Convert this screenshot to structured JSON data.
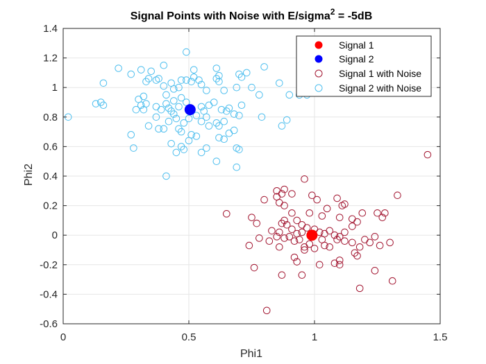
{
  "chart_data": {
    "type": "scatter",
    "title": "Signal Points with Noise with E/sigma",
    "title_superscript": "2",
    "title_suffix": " = -5dB",
    "xlabel": "Phi1",
    "ylabel": "Phi2",
    "xlim": [
      0,
      1.5
    ],
    "ylim": [
      -0.6,
      1.4
    ],
    "xticks": [
      0,
      0.5,
      1,
      1.5
    ],
    "xtick_labels": [
      "0",
      "0.5",
      "1",
      "1.5"
    ],
    "yticks": [
      -0.6,
      -0.4,
      -0.2,
      0,
      0.2,
      0.4,
      0.6,
      0.8,
      1,
      1.2,
      1.4
    ],
    "ytick_labels": [
      "-0.6",
      "-0.4",
      "-0.2",
      "0",
      "0.2",
      "0.4",
      "0.6",
      "0.8",
      "1",
      "1.2",
      "1.4"
    ],
    "grid": true,
    "legend_position": "top-right",
    "colors": {
      "signal1": "#ff0000",
      "signal2": "#0000ff",
      "signal1_noise": "#a2142f",
      "signal2_noise": "#4dbeee",
      "grid": "#e6e6e6",
      "axis": "#262626"
    },
    "series": [
      {
        "name": "Signal 1",
        "marker": "filled-circle",
        "color": "#ff0000",
        "points": [
          [
            0.99,
            0.0
          ]
        ]
      },
      {
        "name": "Signal 2",
        "marker": "filled-circle",
        "color": "#0000ff",
        "points": [
          [
            0.505,
            0.85
          ]
        ]
      },
      {
        "name": "Signal 1 with Noise",
        "marker": "open-circle",
        "color": "#a2142f",
        "points": [
          [
            1.45,
            0.545
          ],
          [
            0.65,
            0.145
          ],
          [
            0.8,
            0.24
          ],
          [
            0.85,
            0.3
          ],
          [
            0.87,
            0.28
          ],
          [
            0.88,
            0.31
          ],
          [
            0.91,
            0.28
          ],
          [
            0.96,
            0.38
          ],
          [
            0.99,
            0.27
          ],
          [
            1.01,
            0.24
          ],
          [
            1.09,
            0.25
          ],
          [
            1.11,
            0.2
          ],
          [
            1.12,
            0.21
          ],
          [
            1.33,
            0.27
          ],
          [
            0.85,
            0.26
          ],
          [
            0.86,
            0.22
          ],
          [
            0.88,
            0.2
          ],
          [
            0.91,
            0.15
          ],
          [
            0.93,
            0.1
          ],
          [
            0.95,
            0.07
          ],
          [
            0.98,
            0.15
          ],
          [
            1.03,
            0.13
          ],
          [
            1.05,
            0.18
          ],
          [
            1.1,
            0.12
          ],
          [
            1.15,
            0.11
          ],
          [
            1.19,
            0.15
          ],
          [
            1.25,
            0.15
          ],
          [
            1.28,
            0.15
          ],
          [
            1.27,
            0.12
          ],
          [
            0.75,
            0.12
          ],
          [
            0.77,
            0.08
          ],
          [
            0.83,
            0.03
          ],
          [
            0.86,
            0.02
          ],
          [
            0.87,
            0.08
          ],
          [
            0.88,
            0.1
          ],
          [
            0.89,
            0.07
          ],
          [
            0.91,
            0.04
          ],
          [
            0.93,
            0.01
          ],
          [
            0.95,
            0.02
          ],
          [
            0.97,
            0.05
          ],
          [
            1.0,
            0.04
          ],
          [
            1.02,
            0.02
          ],
          [
            1.04,
            0.01
          ],
          [
            1.06,
            0.03
          ],
          [
            1.08,
            0.0
          ],
          [
            1.1,
            -0.01
          ],
          [
            1.12,
            0.02
          ],
          [
            1.15,
            0.06
          ],
          [
            1.17,
            0.09
          ],
          [
            0.74,
            -0.07
          ],
          [
            0.78,
            -0.02
          ],
          [
            0.82,
            -0.04
          ],
          [
            0.85,
            -0.01
          ],
          [
            0.86,
            -0.08
          ],
          [
            0.88,
            -0.02
          ],
          [
            0.9,
            -0.01
          ],
          [
            0.92,
            -0.04
          ],
          [
            0.94,
            -0.03
          ],
          [
            0.96,
            -0.08
          ],
          [
            0.98,
            -0.06
          ],
          [
            1.0,
            -0.09
          ],
          [
            1.03,
            -0.03
          ],
          [
            1.04,
            -0.07
          ],
          [
            1.06,
            -0.08
          ],
          [
            1.09,
            -0.03
          ],
          [
            1.12,
            -0.04
          ],
          [
            1.15,
            -0.05
          ],
          [
            1.18,
            -0.08
          ],
          [
            1.2,
            -0.03
          ],
          [
            1.22,
            -0.05
          ],
          [
            1.24,
            -0.01
          ],
          [
            1.26,
            -0.07
          ],
          [
            1.3,
            -0.05
          ],
          [
            0.92,
            -0.15
          ],
          [
            0.93,
            -0.18
          ],
          [
            0.96,
            -0.1
          ],
          [
            1.02,
            -0.2
          ],
          [
            1.08,
            -0.19
          ],
          [
            1.1,
            -0.17
          ],
          [
            1.1,
            -0.2
          ],
          [
            1.16,
            -0.12
          ],
          [
            1.17,
            -0.14
          ],
          [
            1.24,
            -0.24
          ],
          [
            0.76,
            -0.22
          ],
          [
            0.87,
            -0.27
          ],
          [
            0.95,
            -0.27
          ],
          [
            1.18,
            -0.36
          ],
          [
            1.31,
            -0.31
          ],
          [
            0.81,
            -0.51
          ]
        ]
      },
      {
        "name": "Signal 2 with Noise",
        "marker": "open-circle",
        "color": "#4dbeee",
        "points": [
          [
            0.02,
            0.8
          ],
          [
            0.13,
            0.89
          ],
          [
            0.15,
            0.9
          ],
          [
            0.16,
            0.88
          ],
          [
            0.16,
            1.03
          ],
          [
            0.22,
            1.13
          ],
          [
            0.27,
            1.09
          ],
          [
            0.31,
            1.12
          ],
          [
            0.35,
            1.11
          ],
          [
            0.4,
            1.15
          ],
          [
            0.49,
            1.24
          ],
          [
            0.52,
            1.12
          ],
          [
            0.61,
            1.13
          ],
          [
            0.62,
            1.08
          ],
          [
            0.73,
            1.1
          ],
          [
            0.8,
            1.14
          ],
          [
            0.3,
            0.92
          ],
          [
            0.31,
            0.88
          ],
          [
            0.32,
            0.94
          ],
          [
            0.33,
            1.04
          ],
          [
            0.34,
            1.06
          ],
          [
            0.37,
            1.05
          ],
          [
            0.38,
            1.06
          ],
          [
            0.4,
            1.01
          ],
          [
            0.41,
            0.95
          ],
          [
            0.43,
            1.03
          ],
          [
            0.44,
            0.99
          ],
          [
            0.46,
            1.0
          ],
          [
            0.47,
            1.05
          ],
          [
            0.49,
            1.05
          ],
          [
            0.51,
            1.04
          ],
          [
            0.52,
            1.07
          ],
          [
            0.54,
            1.05
          ],
          [
            0.55,
            1.02
          ],
          [
            0.57,
            0.98
          ],
          [
            0.61,
            1.06
          ],
          [
            0.62,
            1.04
          ],
          [
            0.64,
            0.98
          ],
          [
            0.69,
            1.0
          ],
          [
            0.7,
            1.09
          ],
          [
            0.71,
            1.07
          ],
          [
            0.75,
            1.0
          ],
          [
            0.86,
            1.03
          ],
          [
            0.9,
            0.95
          ],
          [
            0.94,
            0.95
          ],
          [
            0.97,
            0.95
          ],
          [
            0.78,
            0.95
          ],
          [
            0.29,
            0.85
          ],
          [
            0.32,
            0.85
          ],
          [
            0.33,
            0.89
          ],
          [
            0.37,
            0.87
          ],
          [
            0.39,
            0.85
          ],
          [
            0.41,
            0.89
          ],
          [
            0.42,
            0.86
          ],
          [
            0.43,
            0.84
          ],
          [
            0.44,
            0.91
          ],
          [
            0.46,
            0.87
          ],
          [
            0.47,
            0.93
          ],
          [
            0.49,
            0.9
          ],
          [
            0.55,
            0.87
          ],
          [
            0.56,
            0.84
          ],
          [
            0.58,
            0.88
          ],
          [
            0.6,
            0.9
          ],
          [
            0.63,
            0.85
          ],
          [
            0.65,
            0.84
          ],
          [
            0.66,
            0.86
          ],
          [
            0.68,
            0.82
          ],
          [
            0.7,
            0.81
          ],
          [
            0.71,
            0.88
          ],
          [
            0.34,
            0.74
          ],
          [
            0.37,
            0.8
          ],
          [
            0.38,
            0.72
          ],
          [
            0.4,
            0.72
          ],
          [
            0.42,
            0.77
          ],
          [
            0.44,
            0.82
          ],
          [
            0.45,
            0.79
          ],
          [
            0.46,
            0.72
          ],
          [
            0.47,
            0.7
          ],
          [
            0.48,
            0.76
          ],
          [
            0.5,
            0.79
          ],
          [
            0.53,
            0.81
          ],
          [
            0.55,
            0.77
          ],
          [
            0.57,
            0.8
          ],
          [
            0.58,
            0.74
          ],
          [
            0.61,
            0.76
          ],
          [
            0.62,
            0.74
          ],
          [
            0.64,
            0.77
          ],
          [
            0.66,
            0.69
          ],
          [
            0.68,
            0.71
          ],
          [
            0.79,
            0.8
          ],
          [
            0.87,
            0.74
          ],
          [
            0.89,
            0.78
          ],
          [
            0.27,
            0.68
          ],
          [
            0.28,
            0.59
          ],
          [
            0.43,
            0.62
          ],
          [
            0.45,
            0.56
          ],
          [
            0.47,
            0.6
          ],
          [
            0.48,
            0.58
          ],
          [
            0.5,
            0.64
          ],
          [
            0.51,
            0.68
          ],
          [
            0.53,
            0.67
          ],
          [
            0.55,
            0.56
          ],
          [
            0.57,
            0.59
          ],
          [
            0.62,
            0.66
          ],
          [
            0.64,
            0.65
          ],
          [
            0.69,
            0.59
          ],
          [
            0.7,
            0.58
          ],
          [
            0.61,
            0.5
          ],
          [
            0.69,
            0.46
          ],
          [
            0.41,
            0.4
          ]
        ]
      }
    ]
  }
}
